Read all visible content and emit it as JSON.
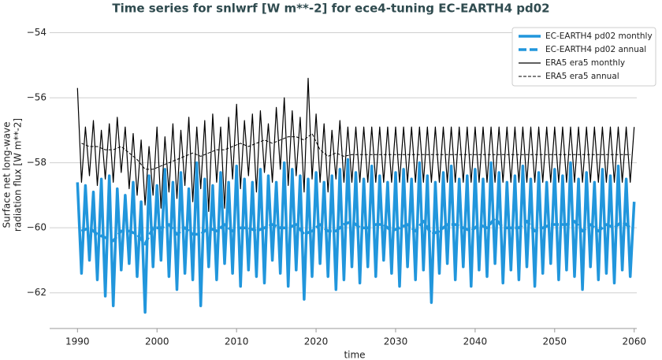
{
  "chart_data": {
    "type": "line",
    "title": "Time series for snlwrf [W m**-2] for ece4-tuning EC-EARTH4 pd02",
    "xlabel": "time",
    "ylabel": [
      "Surface net long-wave",
      "radiation flux [W m**-2]"
    ],
    "xlim": [
      1986.5,
      2063
    ],
    "ylim": [
      -63,
      -53.6
    ],
    "xticks": [
      1990,
      2000,
      2010,
      2020,
      2030,
      2040,
      2050,
      2060
    ],
    "yticks": [
      {
        "value": -62,
        "label": "−62"
      },
      {
        "value": -60,
        "label": "−60"
      },
      {
        "value": -58,
        "label": "−58"
      },
      {
        "value": -56,
        "label": "−56"
      },
      {
        "value": -54,
        "label": "−54"
      }
    ],
    "grid": true,
    "legend": "upper right",
    "x": [
      1990,
      1990.5,
      1991,
      1991.5,
      1992,
      1992.5,
      1993,
      1993.5,
      1994,
      1994.5,
      1995,
      1995.5,
      1996,
      1996.5,
      1997,
      1997.5,
      1998,
      1998.5,
      1999,
      1999.5,
      2000,
      2000.5,
      2001,
      2001.5,
      2002,
      2002.5,
      2003,
      2003.5,
      2004,
      2004.5,
      2005,
      2005.5,
      2006,
      2006.5,
      2007,
      2007.5,
      2008,
      2008.5,
      2009,
      2009.5,
      2010,
      2010.5,
      2011,
      2011.5,
      2012,
      2012.5,
      2013,
      2013.5,
      2014,
      2014.5,
      2015,
      2015.5,
      2016,
      2016.5,
      2017,
      2017.5,
      2018,
      2018.5,
      2019,
      2019.5,
      2020,
      2020.5,
      2021,
      2021.5,
      2022,
      2022.5,
      2023,
      2023.5,
      2024,
      2024.5,
      2025,
      2025.5,
      2026,
      2026.5,
      2027,
      2027.5,
      2028,
      2028.5,
      2029,
      2029.5,
      2030,
      2030.5,
      2031,
      2031.5,
      2032,
      2032.5,
      2033,
      2033.5,
      2034,
      2034.5,
      2035,
      2035.5,
      2036,
      2036.5,
      2037,
      2037.5,
      2038,
      2038.5,
      2039,
      2039.5,
      2040,
      2040.5,
      2041,
      2041.5,
      2042,
      2042.5,
      2043,
      2043.5,
      2044,
      2044.5,
      2045,
      2045.5,
      2046,
      2046.5,
      2047,
      2047.5,
      2048,
      2048.5,
      2049,
      2049.5,
      2050,
      2050.5,
      2051,
      2051.5,
      2052,
      2052.5,
      2053,
      2053.5,
      2054,
      2054.5,
      2055,
      2055.5,
      2056,
      2056.5,
      2057,
      2057.5,
      2058,
      2058.5,
      2059,
      2059.5,
      2060
    ],
    "series": [
      {
        "name": "EC-EARTH4 pd02 monthly",
        "color": "#2196dc",
        "width": 3.5,
        "dashed": false,
        "values": [
          -58.6,
          -61.4,
          -58.7,
          -61.0,
          -58.9,
          -61.6,
          -58.5,
          -62.1,
          -58.4,
          -62.4,
          -58.8,
          -61.3,
          -59.0,
          -61.1,
          -58.6,
          -61.5,
          -59.2,
          -62.6,
          -58.4,
          -61.2,
          -58.7,
          -61.0,
          -58.2,
          -61.5,
          -58.6,
          -61.9,
          -58.3,
          -61.4,
          -58.8,
          -61.6,
          -58.0,
          -62.4,
          -58.5,
          -61.2,
          -58.7,
          -61.6,
          -58.3,
          -61.1,
          -58.6,
          -61.4,
          -58.1,
          -61.8,
          -58.5,
          -61.3,
          -58.6,
          -61.5,
          -58.2,
          -61.7,
          -58.4,
          -61.0,
          -58.6,
          -61.4,
          -58.0,
          -61.8,
          -58.2,
          -61.3,
          -58.4,
          -62.2,
          -58.5,
          -61.5,
          -58.3,
          -61.1,
          -58.6,
          -61.5,
          -58.4,
          -61.9,
          -58.2,
          -61.6,
          -57.9,
          -61.2,
          -58.3,
          -61.7,
          -58.5,
          -61.2,
          -58.1,
          -61.5,
          -58.4,
          -61.0,
          -58.6,
          -61.4,
          -58.3,
          -61.8,
          -58.2,
          -61.2,
          -58.5,
          -61.6,
          -58.0,
          -61.3,
          -58.4,
          -62.3,
          -58.6,
          -61.4,
          -58.3,
          -61.1,
          -58.1,
          -61.6,
          -58.5,
          -61.2,
          -58.4,
          -61.8,
          -58.2,
          -61.3,
          -58.5,
          -61.5,
          -58.0,
          -61.1,
          -58.3,
          -61.7,
          -58.6,
          -61.3,
          -58.4,
          -61.6,
          -58.1,
          -61.2,
          -58.5,
          -61.8,
          -58.3,
          -61.4,
          -58.6,
          -61.1,
          -58.2,
          -61.6,
          -58.4,
          -61.3,
          -58.0,
          -61.5,
          -58.5,
          -61.9,
          -58.3,
          -61.2,
          -58.6,
          -61.6,
          -58.2,
          -61.4,
          -58.4,
          -61.7,
          -58.1,
          -61.3,
          -58.5,
          -61.5,
          -59.2
        ]
      },
      {
        "name": "EC-EARTH4 pd02 annual",
        "color": "#2196dc",
        "width": 3.5,
        "dashed": true,
        "x": [
          1990.5,
          1991.5,
          1992.5,
          1993.5,
          1994.5,
          1995.5,
          1996.5,
          1997.5,
          1998.5,
          1999.5,
          2000.5,
          2001.5,
          2002.5,
          2003.5,
          2004.5,
          2005.5,
          2006.5,
          2007.5,
          2008.5,
          2009.5,
          2010.5,
          2011.5,
          2012.5,
          2013.5,
          2014.5,
          2015.5,
          2016.5,
          2017.5,
          2018.5,
          2019.5,
          2020.5,
          2021.5,
          2022.5,
          2023.5,
          2024.5,
          2025.5,
          2026.5,
          2027.5,
          2028.5,
          2029.5,
          2030.5,
          2031.5,
          2032.5,
          2033.5,
          2034.5,
          2035.5,
          2036.5,
          2037.5,
          2038.5,
          2039.5,
          2040.5,
          2041.5,
          2042.5,
          2043.5,
          2044.5,
          2045.5,
          2046.5,
          2047.5,
          2048.5,
          2049.5,
          2050.5,
          2051.5,
          2052.5,
          2053.5,
          2054.5,
          2055.5,
          2056.5,
          2057.5,
          2058.5,
          2059.5
        ],
        "values": [
          -60.1,
          -60.0,
          -60.2,
          -60.3,
          -60.4,
          -60.1,
          -60.1,
          -60.2,
          -60.5,
          -60.0,
          -60.0,
          -59.9,
          -60.2,
          -60.0,
          -60.2,
          -60.2,
          -60.0,
          -60.1,
          -59.9,
          -60.1,
          -60.0,
          -60.0,
          -60.1,
          -60.0,
          -59.9,
          -60.0,
          -60.0,
          -59.9,
          -60.2,
          -60.1,
          -59.9,
          -60.1,
          -60.1,
          -59.9,
          -59.8,
          -60.0,
          -60.0,
          -59.9,
          -59.9,
          -60.1,
          -60.0,
          -59.9,
          -60.1,
          -59.8,
          -60.2,
          -60.1,
          -59.9,
          -59.9,
          -60.0,
          -60.1,
          -59.9,
          -60.0,
          -59.7,
          -60.0,
          -60.0,
          -60.0,
          -59.8,
          -60.1,
          -60.0,
          -59.9,
          -59.9,
          -59.9,
          -59.8,
          -60.1,
          -59.9,
          -60.1,
          -59.9,
          -60.0,
          -59.8,
          -60.0
        ]
      },
      {
        "name": "ERA5 era5 monthly",
        "color": "#000000",
        "width": 1.2,
        "dashed": false,
        "values": [
          -55.7,
          -58.6,
          -56.9,
          -58.4,
          -56.7,
          -58.7,
          -57.0,
          -58.5,
          -56.8,
          -58.6,
          -56.6,
          -58.3,
          -56.9,
          -58.8,
          -57.1,
          -59.0,
          -57.3,
          -59.3,
          -57.5,
          -59.0,
          -56.9,
          -59.4,
          -57.2,
          -58.9,
          -56.8,
          -59.1,
          -57.0,
          -58.7,
          -56.6,
          -59.2,
          -56.9,
          -58.8,
          -56.7,
          -59.5,
          -56.5,
          -58.6,
          -56.9,
          -59.4,
          -56.6,
          -58.5,
          -56.2,
          -58.8,
          -56.7,
          -58.4,
          -56.5,
          -58.9,
          -56.4,
          -58.3,
          -56.8,
          -58.6,
          -56.3,
          -58.2,
          -56.0,
          -58.7,
          -56.4,
          -58.4,
          -56.6,
          -58.9,
          -55.4,
          -58.5,
          -56.5,
          -58.6,
          -56.8,
          -58.9,
          -57.0,
          -58.5,
          -56.7,
          -58.6,
          -56.9,
          -58.6,
          -56.9,
          -58.6,
          -56.9,
          -58.6,
          -56.9,
          -58.6,
          -56.9,
          -58.6,
          -56.9,
          -58.6,
          -56.9,
          -58.6,
          -56.9,
          -58.6,
          -56.9,
          -58.6,
          -56.9,
          -58.6,
          -56.9,
          -58.6,
          -56.9,
          -58.6,
          -56.9,
          -58.6,
          -56.9,
          -58.6,
          -56.9,
          -58.6,
          -56.9,
          -58.6,
          -56.9,
          -58.6,
          -56.9,
          -58.6,
          -56.9,
          -58.6,
          -56.9,
          -58.6,
          -56.9,
          -58.6,
          -56.9,
          -58.6,
          -56.9,
          -58.6,
          -56.9,
          -58.6,
          -56.9,
          -58.6,
          -56.9,
          -58.6,
          -56.9,
          -58.6,
          -56.9,
          -58.6,
          -56.9,
          -58.6,
          -56.9,
          -58.6,
          -56.9,
          -58.6,
          -56.9,
          -58.6,
          -56.9,
          -58.6,
          -56.9,
          -58.6,
          -56.9,
          -58.6,
          -56.9,
          -58.6,
          -56.9
        ]
      },
      {
        "name": "ERA5 era5 annual",
        "color": "#000000",
        "width": 1,
        "dashed": true,
        "x": [
          1990.5,
          1991.5,
          1992.5,
          1993.5,
          1994.5,
          1995.5,
          1996.5,
          1997.5,
          1998.5,
          1999.5,
          2000.5,
          2001.5,
          2002.5,
          2003.5,
          2004.5,
          2005.5,
          2006.5,
          2007.5,
          2008.5,
          2009.5,
          2010.5,
          2011.5,
          2012.5,
          2013.5,
          2014.5,
          2015.5,
          2016.5,
          2017.5,
          2018.5,
          2019.5,
          2020.5,
          2021.5,
          2022.5,
          2023.5,
          2024.5,
          2025.5,
          2026.5,
          2027.5,
          2028.5,
          2029.5,
          2030.5,
          2031.5,
          2032.5,
          2033.5,
          2034.5,
          2035.5,
          2036.5,
          2037.5,
          2038.5,
          2039.5,
          2040.5,
          2041.5,
          2042.5,
          2043.5,
          2044.5,
          2045.5,
          2046.5,
          2047.5,
          2048.5,
          2049.5,
          2050.5,
          2051.5,
          2052.5,
          2053.5,
          2054.5,
          2055.5,
          2056.5,
          2057.5,
          2058.5,
          2059.5
        ],
        "values": [
          -57.4,
          -57.5,
          -57.5,
          -57.6,
          -57.6,
          -57.5,
          -57.7,
          -57.9,
          -58.2,
          -58.2,
          -58.1,
          -58.0,
          -57.9,
          -57.8,
          -57.7,
          -57.8,
          -57.7,
          -57.6,
          -57.6,
          -57.5,
          -57.4,
          -57.5,
          -57.4,
          -57.3,
          -57.4,
          -57.3,
          -57.2,
          -57.2,
          -57.3,
          -57.1,
          -57.6,
          -57.8,
          -57.7,
          -57.8,
          -57.75,
          -57.75,
          -57.75,
          -57.75,
          -57.75,
          -57.75,
          -57.75,
          -57.75,
          -57.75,
          -57.75,
          -57.75,
          -57.75,
          -57.75,
          -57.75,
          -57.75,
          -57.75,
          -57.75,
          -57.75,
          -57.75,
          -57.75,
          -57.75,
          -57.75,
          -57.75,
          -57.75,
          -57.75,
          -57.75,
          -57.75,
          -57.75,
          -57.75,
          -57.75,
          -57.75,
          -57.75,
          -57.75,
          -57.75,
          -57.75,
          -57.75
        ]
      }
    ]
  }
}
